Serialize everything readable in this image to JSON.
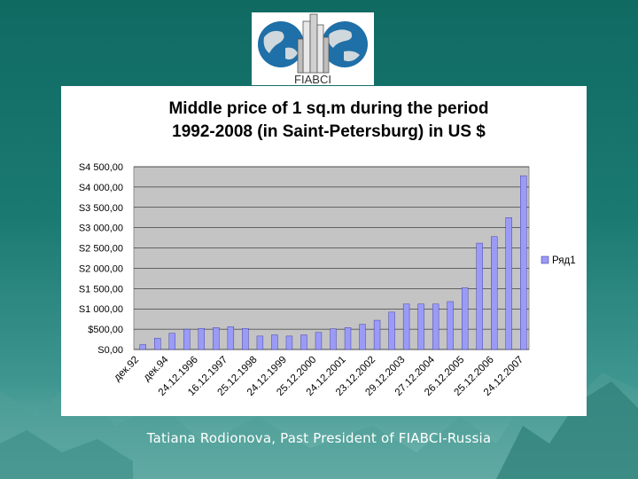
{
  "logo": {
    "text": "FIABCI"
  },
  "footer": {
    "text": "Tatiana Rodionova, Past President of FIABCI-Russia"
  },
  "chart_data": {
    "type": "bar",
    "title": "Middle price of 1 sq.m during the period 1992-2008 (in Saint-Petersburg) in US $",
    "title_lines": [
      "Middle price of 1 sq.m during the period",
      "1992-2008 (in Saint-Petersburg) in US $"
    ],
    "xlabel": "",
    "ylabel": "",
    "ylim": [
      0,
      4500
    ],
    "y_ticks": [
      0,
      500,
      1000,
      1500,
      2000,
      2500,
      3000,
      3500,
      4000,
      4500
    ],
    "y_tick_labels": [
      "S0,00",
      "$500,00",
      "S1 000,00",
      "S1 500,00",
      "S2 000,00",
      "S2 500,00",
      "S3 000,00",
      "S3 500,00",
      "S4 000,00",
      "S4 500,00"
    ],
    "x_tick_labels": [
      "дек.92",
      "дек.94",
      "24.12.1996",
      "16.12.1997",
      "25.12.1998",
      "24.12.1999",
      "25.12.2000",
      "24.12.2001",
      "23.12.2002",
      "29.12.2003",
      "27.12.2004",
      "26.12.2005",
      "25.12.2006",
      "24.12.2007"
    ],
    "series": [
      {
        "name": "Ряд1",
        "values": [
          120,
          280,
          400,
          500,
          520,
          540,
          560,
          520,
          330,
          360,
          330,
          360,
          420,
          510,
          540,
          620,
          720,
          920,
          1120,
          1120,
          1120,
          1180,
          1520,
          2620,
          2780,
          3250,
          4280
        ]
      }
    ],
    "grid": true,
    "legend": "right",
    "colors": {
      "bar": "#9b9bf7",
      "bar_edge": "#2a2a9a",
      "plot_bg": "#c4c4c4",
      "gridline": "#000000"
    }
  }
}
